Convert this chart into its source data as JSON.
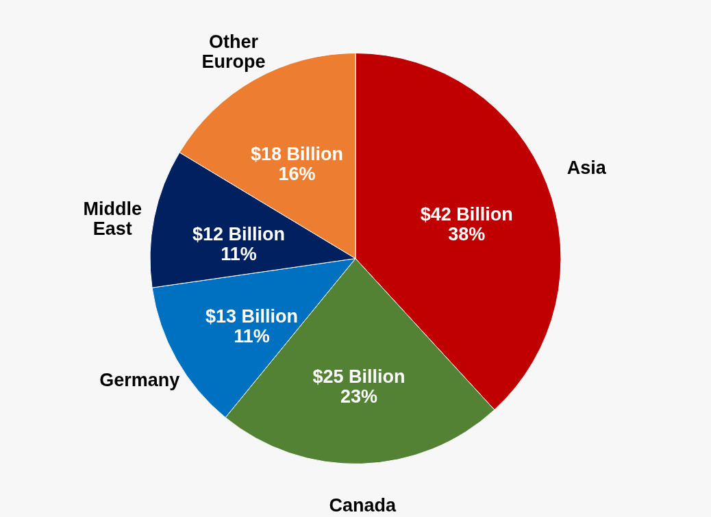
{
  "chart_data": {
    "type": "pie",
    "categories": [
      "Asia",
      "Canada",
      "Germany",
      "Middle East",
      "Other Europe"
    ],
    "values": [
      42,
      25,
      13,
      12,
      18
    ],
    "colors": [
      "#c00000",
      "#548235",
      "#0070c0",
      "#002060",
      "#ed7d31"
    ],
    "value_labels": [
      "$42 Billion\n38%",
      "$25 Billion\n23%",
      "$13 Billion\n11%",
      "$12 Billion\n11%",
      "$18 Billion\n16%"
    ]
  }
}
